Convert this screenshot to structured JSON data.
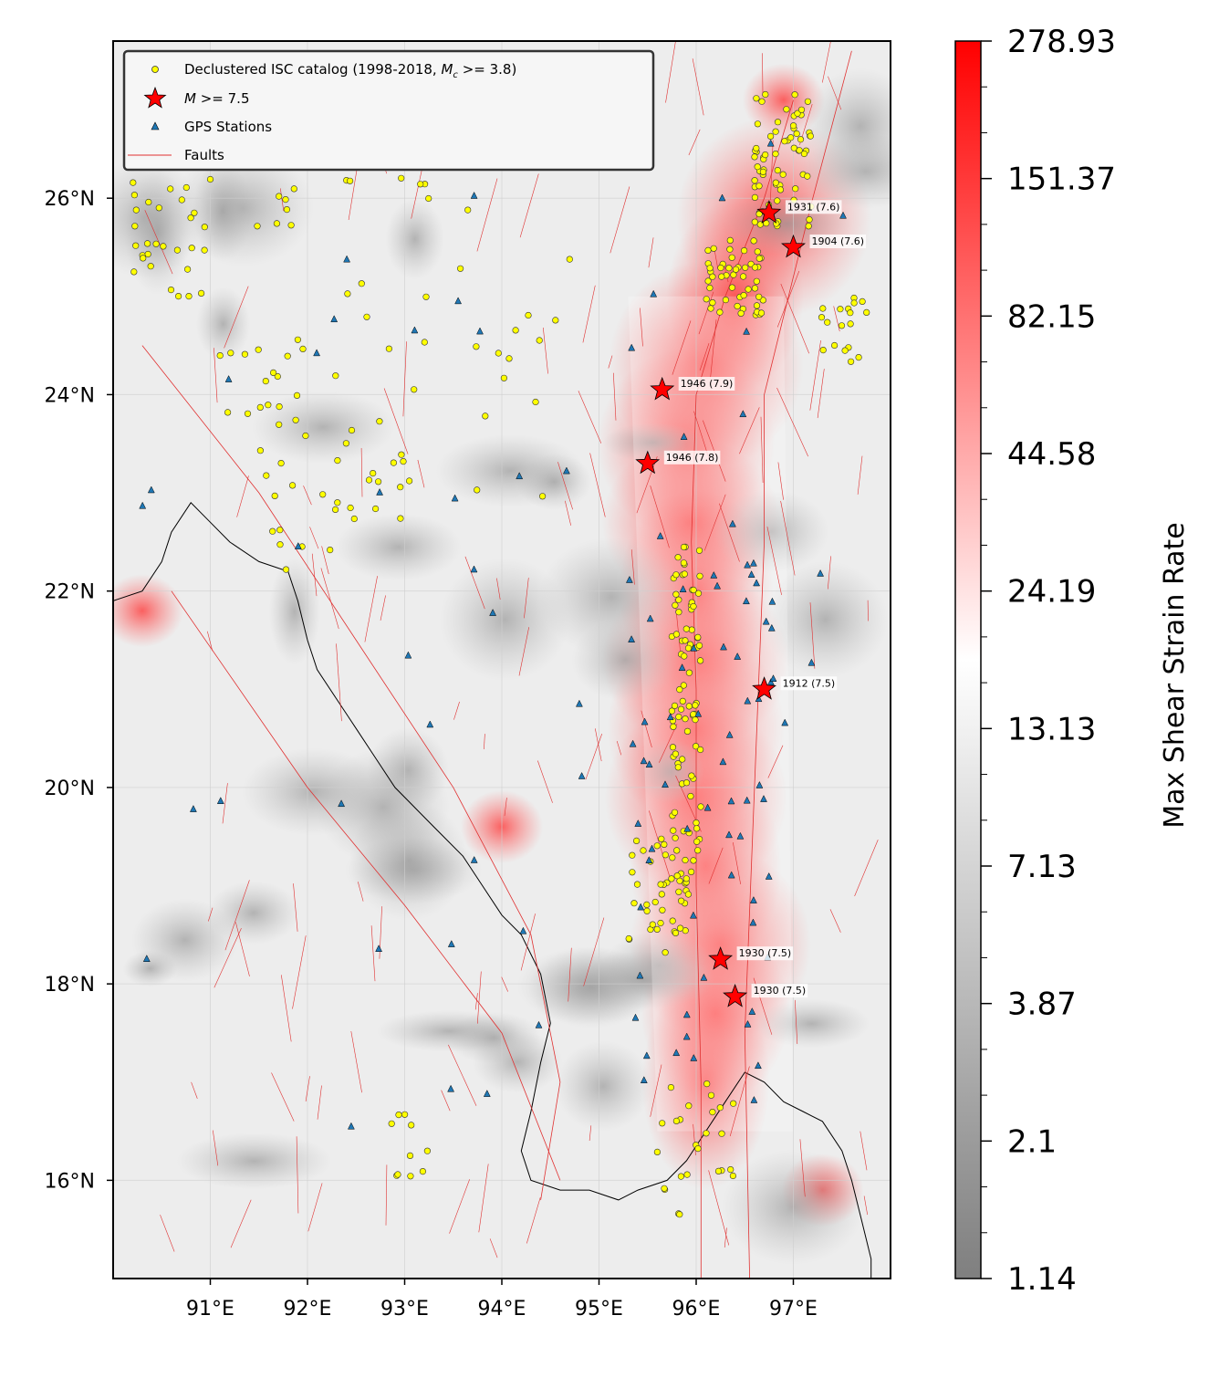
{
  "legend": {
    "catalog_prefix": "Declustered ISC catalog (1998-2018, ",
    "catalog_mc": "M",
    "catalog_mc_sub": "c",
    "catalog_suffix": " >= 3.8)",
    "big_quake_m": "M",
    "big_quake_rest": " >= 7.5",
    "gps": "GPS Stations",
    "faults": "Faults"
  },
  "axes": {
    "x_ticks": [
      "91°E",
      "92°E",
      "93°E",
      "94°E",
      "95°E",
      "96°E",
      "97°E"
    ],
    "y_ticks": [
      "26°N",
      "24°N",
      "22°N",
      "20°N",
      "18°N",
      "16°N"
    ],
    "lon_range": [
      90.0,
      98.0
    ],
    "lat_range": [
      15.0,
      27.6
    ]
  },
  "colorbar": {
    "title": "Max Shear Strain Rate",
    "tick_labels": [
      "278.93",
      "151.37",
      "82.15",
      "44.58",
      "24.19",
      "13.13",
      "7.13",
      "3.87",
      "2.1",
      "1.14"
    ],
    "colors": [
      "#ff0000",
      "#ffffff",
      "#7f7f7f"
    ]
  },
  "earthquakes": [
    {
      "label": "1931 (7.6)",
      "lon": 96.75,
      "lat": 25.85
    },
    {
      "label": "1904 (7.6)",
      "lon": 97.0,
      "lat": 25.5
    },
    {
      "label": "1946 (7.9)",
      "lon": 95.65,
      "lat": 24.05
    },
    {
      "label": "1946 (7.8)",
      "lon": 95.5,
      "lat": 23.3
    },
    {
      "label": "1912 (7.5)",
      "lon": 96.7,
      "lat": 21.0
    },
    {
      "label": "1930 (7.5)",
      "lon": 96.25,
      "lat": 18.25
    },
    {
      "label": "1930 (7.5)",
      "lon": 96.4,
      "lat": 17.87
    }
  ],
  "colors": {
    "quake_fill": "#ff0000",
    "catalog_fill": "#ffff00",
    "gps_fill": "#1f77b4",
    "fault_stroke": "#e03030"
  }
}
